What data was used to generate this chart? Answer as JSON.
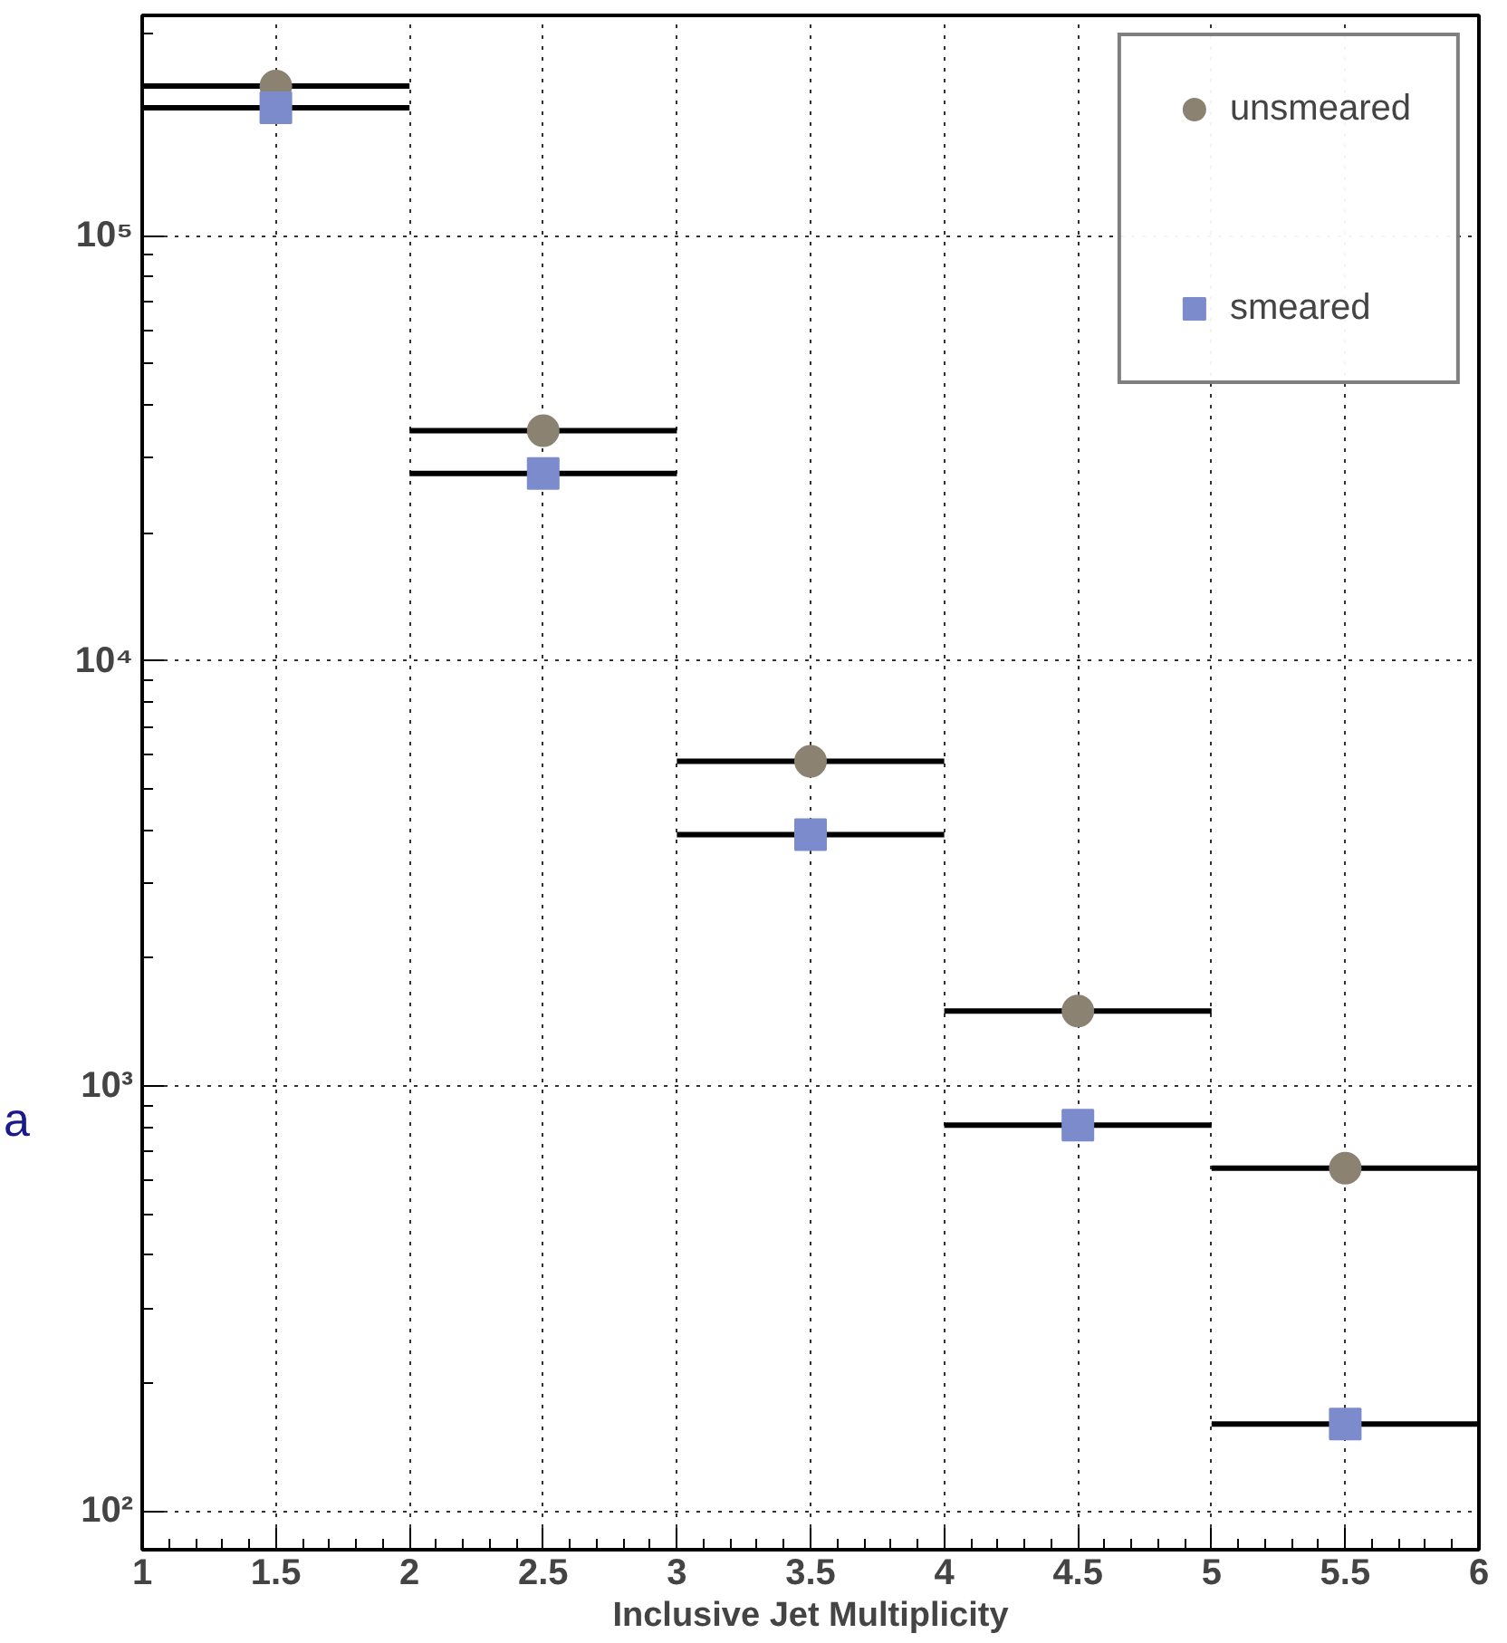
{
  "chart_data": {
    "type": "scatter",
    "xlabel": "Inclusive Jet Multiplicity",
    "x": [
      1.5,
      2.5,
      3.5,
      4.5,
      5.5
    ],
    "series": [
      {
        "name": "unsmeared",
        "color": "#8b8272",
        "marker": "circle",
        "values": [
          225000,
          34800,
          5800,
          1500,
          640
        ],
        "xerrors": [
          0.5,
          0.5,
          0.5,
          0.5,
          0.5
        ]
      },
      {
        "name": "smeared",
        "color": "#7b8bcc",
        "marker": "square",
        "values": [
          200000,
          27600,
          3900,
          808,
          160
        ],
        "xerrors": [
          0.5,
          0.5,
          0.5,
          0.5,
          0.5
        ]
      }
    ],
    "log": "y",
    "xlim": [
      1,
      6
    ],
    "ylim": [
      81,
      330000
    ],
    "xticks": [
      1,
      1.5,
      2,
      2.5,
      3,
      3.5,
      4,
      4.5,
      5,
      5.5,
      6
    ],
    "yticks": [
      {
        "value": 100,
        "label": "10²"
      },
      {
        "value": 1000,
        "label": "10³"
      },
      {
        "value": 10000,
        "label": "10⁴"
      },
      {
        "value": 100000,
        "label": "10⁵"
      }
    ],
    "grid": true,
    "line_style": "dotted",
    "legend": "top right",
    "annotations": [
      "a"
    ]
  }
}
